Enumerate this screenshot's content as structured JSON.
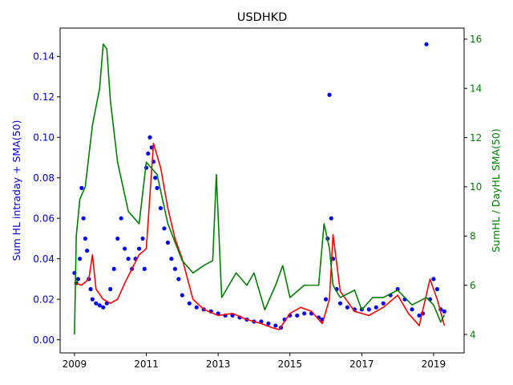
{
  "chart_data": {
    "type": "scatter",
    "title": "USDHKD",
    "colors": {
      "scatter": "#0000ff",
      "sma": "#ff0000",
      "right_line": "#008000",
      "axis": "#000000"
    },
    "x_axis": {
      "label": "",
      "range": [
        2008.6,
        2019.85
      ],
      "ticks": [
        2009,
        2011,
        2013,
        2015,
        2017,
        2019
      ],
      "tick_labels": [
        "2009",
        "2011",
        "2013",
        "2015",
        "2017",
        "2019"
      ]
    },
    "y_left": {
      "label": "Sum HL intraday + SMA(50)",
      "color": "#0000cc",
      "range": [
        -0.0065,
        0.154
      ],
      "ticks": [
        0.0,
        0.02,
        0.04,
        0.06,
        0.08,
        0.1,
        0.12,
        0.14
      ],
      "tick_labels": [
        "0.00",
        "0.02",
        "0.04",
        "0.06",
        "0.08",
        "0.10",
        "0.12",
        "0.14"
      ]
    },
    "y_right": {
      "label": "SumHL / DayHL SMA(50)",
      "color": "#008000",
      "range": [
        3.25,
        16.45
      ],
      "ticks": [
        4,
        6,
        8,
        10,
        12,
        14,
        16
      ],
      "tick_labels": [
        "4",
        "6",
        "8",
        "10",
        "12",
        "14",
        "16"
      ]
    },
    "series": [
      {
        "axis": "left",
        "type": "scatter",
        "x": [
          2009.0,
          2009.05,
          2009.1,
          2009.15,
          2009.2,
          2009.25,
          2009.3,
          2009.35,
          2009.4,
          2009.45,
          2009.5,
          2009.6,
          2009.7,
          2009.8,
          2009.9,
          2010.0,
          2010.1,
          2010.2,
          2010.3,
          2010.4,
          2010.5,
          2010.6,
          2010.7,
          2010.8,
          2010.9,
          2010.95,
          2011.0,
          2011.05,
          2011.1,
          2011.15,
          2011.2,
          2011.25,
          2011.3,
          2011.4,
          2011.5,
          2011.6,
          2011.7,
          2011.8,
          2011.9,
          2012.0,
          2012.2,
          2012.4,
          2012.6,
          2012.8,
          2013.0,
          2013.2,
          2013.4,
          2013.6,
          2013.8,
          2014.0,
          2014.2,
          2014.4,
          2014.6,
          2014.75,
          2014.85,
          2015.0,
          2015.2,
          2015.4,
          2015.6,
          2015.8,
          2015.9,
          2016.0,
          2016.05,
          2016.1,
          2016.15,
          2016.2,
          2016.3,
          2016.4,
          2016.6,
          2016.8,
          2017.0,
          2017.2,
          2017.4,
          2017.6,
          2017.8,
          2018.0,
          2018.2,
          2018.4,
          2018.6,
          2018.7,
          2018.8,
          2018.9,
          2019.0,
          2019.1,
          2019.2,
          2019.3
        ],
        "y": [
          0.033,
          0.028,
          0.03,
          0.04,
          0.075,
          0.06,
          0.05,
          0.044,
          0.03,
          0.025,
          0.02,
          0.018,
          0.017,
          0.016,
          0.018,
          0.025,
          0.035,
          0.05,
          0.06,
          0.045,
          0.04,
          0.035,
          0.04,
          0.045,
          0.05,
          0.035,
          0.085,
          0.092,
          0.1,
          0.095,
          0.088,
          0.08,
          0.075,
          0.065,
          0.055,
          0.048,
          0.04,
          0.035,
          0.03,
          0.022,
          0.018,
          0.016,
          0.015,
          0.014,
          0.013,
          0.012,
          0.012,
          0.011,
          0.01,
          0.009,
          0.009,
          0.008,
          0.007,
          0.006,
          0.01,
          0.012,
          0.012,
          0.013,
          0.013,
          0.011,
          0.01,
          0.02,
          0.05,
          0.121,
          0.06,
          0.04,
          0.025,
          0.018,
          0.016,
          0.015,
          0.015,
          0.015,
          0.016,
          0.018,
          0.022,
          0.025,
          0.02,
          0.015,
          0.012,
          0.013,
          0.146,
          0.02,
          0.03,
          0.025,
          0.015,
          0.014
        ]
      },
      {
        "axis": "left",
        "type": "line",
        "name": "",
        "x": [
          2009.0,
          2009.2,
          2009.4,
          2009.5,
          2009.6,
          2009.8,
          2010.0,
          2010.2,
          2010.4,
          2010.6,
          2010.8,
          2011.0,
          2011.2,
          2011.4,
          2011.6,
          2011.8,
          2012.0,
          2012.3,
          2012.6,
          2013.0,
          2013.4,
          2013.8,
          2014.2,
          2014.5,
          2014.7,
          2015.0,
          2015.3,
          2015.6,
          2015.9,
          2016.1,
          2016.2,
          2016.4,
          2016.8,
          2017.2,
          2017.6,
          2018.0,
          2018.3,
          2018.6,
          2018.9,
          2019.1,
          2019.3
        ],
        "y": [
          0.028,
          0.027,
          0.03,
          0.042,
          0.025,
          0.02,
          0.018,
          0.02,
          0.028,
          0.035,
          0.042,
          0.045,
          0.097,
          0.085,
          0.065,
          0.05,
          0.04,
          0.02,
          0.015,
          0.012,
          0.013,
          0.01,
          0.008,
          0.006,
          0.005,
          0.013,
          0.016,
          0.014,
          0.008,
          0.02,
          0.052,
          0.024,
          0.014,
          0.012,
          0.016,
          0.022,
          0.013,
          0.007,
          0.03,
          0.02,
          0.007
        ]
      },
      {
        "axis": "right",
        "type": "line",
        "name": "",
        "x": [
          2009.0,
          2009.05,
          2009.15,
          2009.3,
          2009.5,
          2009.7,
          2009.8,
          2009.9,
          2010.0,
          2010.2,
          2010.5,
          2010.8,
          2011.0,
          2011.3,
          2011.6,
          2012.0,
          2012.3,
          2012.6,
          2012.85,
          2012.95,
          2013.1,
          2013.3,
          2013.5,
          2013.8,
          2014.0,
          2014.3,
          2014.6,
          2014.8,
          2015.0,
          2015.4,
          2015.8,
          2015.95,
          2016.1,
          2016.2,
          2016.4,
          2016.8,
          2017.0,
          2017.3,
          2017.6,
          2018.0,
          2018.4,
          2018.8,
          2019.0,
          2019.2,
          2019.3
        ],
        "y": [
          4.0,
          8.0,
          9.5,
          10.0,
          12.5,
          14.0,
          15.8,
          15.6,
          13.5,
          11.0,
          9.0,
          8.5,
          11.0,
          10.5,
          8.5,
          7.0,
          6.5,
          6.8,
          7.0,
          10.5,
          5.5,
          6.0,
          6.5,
          6.0,
          6.5,
          5.0,
          6.0,
          6.8,
          5.5,
          6.0,
          6.0,
          8.5,
          7.5,
          6.0,
          5.5,
          5.8,
          5.0,
          5.5,
          5.5,
          5.8,
          5.2,
          5.5,
          5.2,
          4.5,
          4.8
        ]
      }
    ]
  }
}
